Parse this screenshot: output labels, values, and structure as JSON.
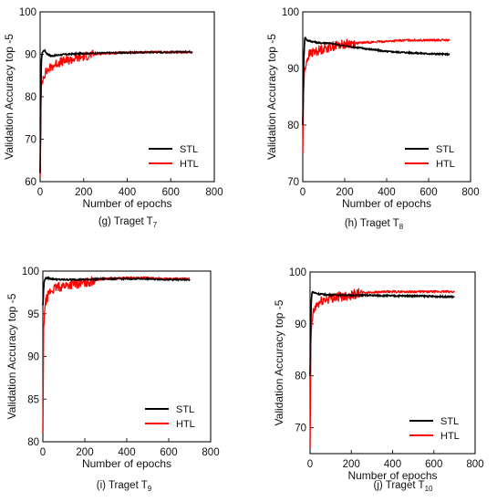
{
  "chart_data": [
    {
      "type": "line",
      "caption": "(g) Traget T",
      "caption_sub": "7",
      "xlabel": "Number of epochs",
      "ylabel": "Validation Accuracy top -5",
      "xlim": [
        0,
        800
      ],
      "ylim": [
        60,
        100
      ],
      "xticks": [
        "0",
        "200",
        "400",
        "600",
        "800"
      ],
      "yticks": [
        "60",
        "70",
        "80",
        "90",
        "100"
      ],
      "legend_position": "lower-right",
      "grid": false,
      "series": [
        {
          "name": "STL",
          "color": "#000000",
          "x": [
            0,
            5,
            10,
            20,
            30,
            50,
            80,
            120,
            200,
            300,
            400,
            500,
            600,
            700
          ],
          "y": [
            62,
            88,
            90.5,
            91,
            90.2,
            89.6,
            89.8,
            90,
            90.2,
            90.3,
            90.4,
            90.5,
            90.5,
            90.6
          ]
        },
        {
          "name": "HTL",
          "color": "#ff0000",
          "x": [
            0,
            4,
            8,
            15,
            30,
            50,
            80,
            120,
            160,
            200,
            250,
            300,
            400,
            500,
            600,
            700
          ],
          "y": [
            61,
            80,
            83,
            85,
            86,
            87,
            88,
            88.5,
            89,
            89.5,
            90,
            90.2,
            90.4,
            90.5,
            90.5,
            90.5
          ]
        }
      ]
    },
    {
      "type": "line",
      "caption": "(h) Traget T",
      "caption_sub": "8",
      "xlabel": "Number of epochs",
      "ylabel": "Validation Accuracy top -5",
      "xlim": [
        0,
        800
      ],
      "ylim": [
        70,
        100
      ],
      "xticks": [
        "0",
        "200",
        "400",
        "600",
        "800"
      ],
      "yticks": [
        "70",
        "80",
        "90",
        "100"
      ],
      "legend_position": "lower-right",
      "grid": false,
      "series": [
        {
          "name": "STL",
          "color": "#000000",
          "x": [
            0,
            5,
            10,
            20,
            40,
            80,
            120,
            200,
            300,
            400,
            500,
            600,
            700
          ],
          "y": [
            80,
            92,
            95.5,
            95,
            94.8,
            94.5,
            94.5,
            94,
            93.5,
            93,
            92.8,
            92.6,
            92.5
          ]
        },
        {
          "name": "HTL",
          "color": "#ff0000",
          "x": [
            0,
            4,
            8,
            15,
            30,
            60,
            100,
            150,
            200,
            300,
            400,
            500,
            600,
            700
          ],
          "y": [
            75,
            86,
            89,
            91,
            92.5,
            93,
            93.5,
            94,
            94.3,
            94.6,
            94.8,
            95,
            95,
            95
          ]
        }
      ]
    },
    {
      "type": "line",
      "caption": "(i) Traget T",
      "caption_sub": "9",
      "xlabel": "Number of epochs",
      "ylabel": "Validation Accuracy top -5",
      "xlim": [
        0,
        800
      ],
      "ylim": [
        80,
        100
      ],
      "xticks": [
        "0",
        "200",
        "400",
        "600",
        "800"
      ],
      "yticks": [
        "80",
        "85",
        "90",
        "95",
        "100"
      ],
      "legend_position": "lower-right",
      "grid": false,
      "series": [
        {
          "name": "STL",
          "color": "#000000",
          "x": [
            0,
            5,
            10,
            20,
            40,
            80,
            120,
            200,
            300,
            400,
            500,
            600,
            700
          ],
          "y": [
            96,
            98.5,
            99.1,
            99.2,
            99.1,
            99,
            99,
            99,
            99.1,
            99.1,
            99.1,
            99,
            99
          ]
        },
        {
          "name": "HTL",
          "color": "#ff0000",
          "x": [
            0,
            4,
            8,
            15,
            30,
            60,
            100,
            150,
            200,
            260,
            300,
            400,
            500,
            600,
            700
          ],
          "y": [
            81,
            93,
            95.5,
            96.5,
            97.5,
            98,
            98.3,
            98.5,
            98.6,
            99,
            99.1,
            99.2,
            99.2,
            99.1,
            99.1
          ]
        }
      ]
    },
    {
      "type": "line",
      "caption": "(j) Traget T",
      "caption_sub": "10",
      "xlabel": "Number of epochs",
      "ylabel": "Validation Accuracy top -5",
      "xlim": [
        0,
        800
      ],
      "ylim": [
        65,
        100
      ],
      "xticks": [
        "0",
        "200",
        "400",
        "600",
        "800"
      ],
      "yticks": [
        "70",
        "80",
        "90",
        "100"
      ],
      "legend_position": "lower-right",
      "grid": false,
      "series": [
        {
          "name": "STL",
          "color": "#000000",
          "x": [
            0,
            5,
            10,
            20,
            40,
            80,
            120,
            200,
            300,
            400,
            500,
            600,
            700
          ],
          "y": [
            80,
            94,
            96.2,
            96,
            95.8,
            95.6,
            95.6,
            95.5,
            95.5,
            95.4,
            95.4,
            95.3,
            95.2
          ]
        },
        {
          "name": "HTL",
          "color": "#ff0000",
          "x": [
            0,
            4,
            8,
            15,
            30,
            60,
            100,
            150,
            200,
            250,
            300,
            400,
            500,
            600,
            700
          ],
          "y": [
            66,
            86,
            90,
            92,
            93.5,
            94.5,
            95,
            95.3,
            95.6,
            96,
            96.1,
            96.2,
            96.2,
            96.2,
            96.2
          ]
        }
      ]
    }
  ]
}
